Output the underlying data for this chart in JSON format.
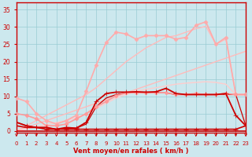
{
  "bg_color": "#cce8ee",
  "grid_color": "#99ccd4",
  "xlabel": "Vent moyen/en rafales ( km/h )",
  "xlim": [
    0,
    23
  ],
  "ylim": [
    -0.5,
    37
  ],
  "yticks": [
    0,
    5,
    10,
    15,
    20,
    25,
    30,
    35
  ],
  "xticks": [
    0,
    1,
    2,
    3,
    4,
    5,
    6,
    7,
    8,
    9,
    10,
    11,
    12,
    13,
    14,
    15,
    16,
    17,
    18,
    19,
    20,
    21,
    22,
    23
  ],
  "tick_color": "#cc0000",
  "axis_label_color": "#cc0000",
  "line_configs": [
    {
      "x": [
        0,
        1,
        2,
        3,
        4,
        5,
        6,
        7,
        8,
        9,
        10,
        11,
        12,
        13,
        14,
        15,
        16,
        17,
        18,
        19,
        20,
        21,
        22,
        23
      ],
      "y": [
        1.5,
        1.0,
        1.0,
        0.5,
        0.5,
        0.5,
        0.5,
        0.5,
        0.5,
        0.5,
        0.5,
        0.5,
        0.5,
        0.5,
        0.5,
        0.5,
        0.5,
        0.5,
        0.5,
        0.5,
        0.5,
        0.5,
        0.5,
        1.5
      ],
      "color": "#cc0000",
      "lw": 1.2,
      "marker": "+",
      "ms": 4,
      "zorder": 6
    },
    {
      "x": [
        0,
        1,
        2,
        3,
        4,
        5,
        6,
        7,
        8,
        9,
        10,
        11,
        12,
        13,
        14,
        15,
        16,
        17,
        18,
        19,
        20,
        21,
        22,
        23
      ],
      "y": [
        2.5,
        1.5,
        1.0,
        1.0,
        0.5,
        1.0,
        0.8,
        2.5,
        8.5,
        10.8,
        11.2,
        11.2,
        11.3,
        11.2,
        11.3,
        12.3,
        10.8,
        10.5,
        10.5,
        10.5,
        10.5,
        10.8,
        4.5,
        1.5
      ],
      "color": "#cc0000",
      "lw": 1.3,
      "marker": "+",
      "ms": 4,
      "zorder": 5
    },
    {
      "x": [
        0,
        1,
        2,
        3,
        4,
        5,
        6,
        7,
        8,
        9,
        10,
        11,
        12,
        13,
        14,
        15,
        16,
        17,
        18,
        19,
        20,
        21,
        22,
        23
      ],
      "y": [
        0,
        1,
        2,
        3,
        4,
        5,
        6,
        7,
        8,
        9,
        10,
        11,
        12,
        13,
        14,
        15,
        16,
        17,
        18,
        19,
        20,
        21,
        22,
        23
      ],
      "color": "#ffbbbb",
      "lw": 1.0,
      "marker": null,
      "ms": 0,
      "zorder": 2
    },
    {
      "x": [
        0,
        1,
        2,
        3,
        4,
        5,
        6,
        7,
        8,
        9,
        10,
        11,
        12,
        13,
        14,
        15,
        16,
        17,
        18,
        19,
        20,
        21,
        22,
        23
      ],
      "y": [
        0,
        0.6,
        1.2,
        1.8,
        2.4,
        3.0,
        3.8,
        5.0,
        6.5,
        8.0,
        9.5,
        10.5,
        11.5,
        12.0,
        12.5,
        13.0,
        13.5,
        13.8,
        14.0,
        14.2,
        14.0,
        13.5,
        10.5,
        10.5
      ],
      "color": "#ffcccc",
      "lw": 1.0,
      "marker": null,
      "ms": 0,
      "zorder": 2
    },
    {
      "x": [
        0,
        1,
        2,
        3,
        4,
        5,
        6,
        7,
        8,
        9,
        10,
        11,
        12,
        13,
        14,
        15,
        16,
        17,
        18,
        19,
        20,
        21,
        22,
        23
      ],
      "y": [
        5.0,
        4.5,
        3.5,
        1.5,
        1.5,
        2.0,
        3.5,
        5.0,
        7.0,
        8.5,
        10.2,
        11.0,
        11.0,
        11.0,
        11.0,
        11.0,
        10.5,
        10.5,
        10.8,
        10.5,
        10.5,
        10.8,
        10.5,
        10.5
      ],
      "color": "#ff9999",
      "lw": 1.2,
      "marker": "D",
      "ms": 2.5,
      "zorder": 4
    },
    {
      "x": [
        0,
        1,
        2,
        3,
        4,
        5,
        6,
        7,
        8,
        9,
        10,
        11,
        12,
        13,
        14,
        15,
        16,
        17,
        18,
        19,
        20,
        21,
        22,
        23
      ],
      "y": [
        9.5,
        8.5,
        5.0,
        3.0,
        2.0,
        3.0,
        4.5,
        11.5,
        19.0,
        25.5,
        28.5,
        28.0,
        26.5,
        27.5,
        27.5,
        27.5,
        26.5,
        27.0,
        30.5,
        31.5,
        25.0,
        27.0,
        10.5,
        10.5
      ],
      "color": "#ffaaaa",
      "lw": 1.2,
      "marker": "D",
      "ms": 2.5,
      "zorder": 3
    },
    {
      "x": [
        0,
        1,
        2,
        3,
        4,
        5,
        6,
        7,
        8,
        9,
        10,
        11,
        12,
        13,
        14,
        15,
        16,
        17,
        18,
        19,
        20,
        21,
        22,
        23
      ],
      "y": [
        0,
        1.5,
        3.0,
        4.5,
        6.0,
        7.5,
        9.0,
        10.5,
        12.5,
        15.0,
        17.5,
        20.0,
        22.0,
        24.0,
        25.5,
        27.0,
        27.5,
        28.5,
        29.5,
        30.2,
        25.0,
        26.5,
        10.5,
        10.5
      ],
      "color": "#ffbbbb",
      "lw": 1.0,
      "marker": null,
      "ms": 0,
      "zorder": 2
    },
    {
      "x": [
        0,
        1,
        2,
        3,
        4,
        5,
        6,
        7,
        8,
        9,
        10,
        11,
        12,
        13,
        14,
        15,
        16,
        17,
        18,
        19,
        20,
        21,
        22,
        23
      ],
      "y": [
        2.5,
        1.5,
        1.0,
        1.0,
        0.5,
        0.8,
        0.8,
        2.0,
        7.0,
        9.5,
        10.5,
        11.0,
        11.0,
        11.0,
        11.0,
        11.0,
        10.5,
        10.5,
        10.5,
        10.5,
        10.5,
        10.5,
        10.5,
        1.5
      ],
      "color": "#cc0000",
      "lw": 0.9,
      "marker": null,
      "ms": 0,
      "zorder": 3
    }
  ],
  "arrows": {
    "x": [
      0,
      1,
      2,
      3,
      4,
      5,
      6,
      7,
      8,
      9,
      10,
      11,
      12,
      13,
      14,
      15,
      16,
      17,
      18,
      19,
      20,
      21,
      22,
      23
    ],
    "color": "#cc0000"
  }
}
